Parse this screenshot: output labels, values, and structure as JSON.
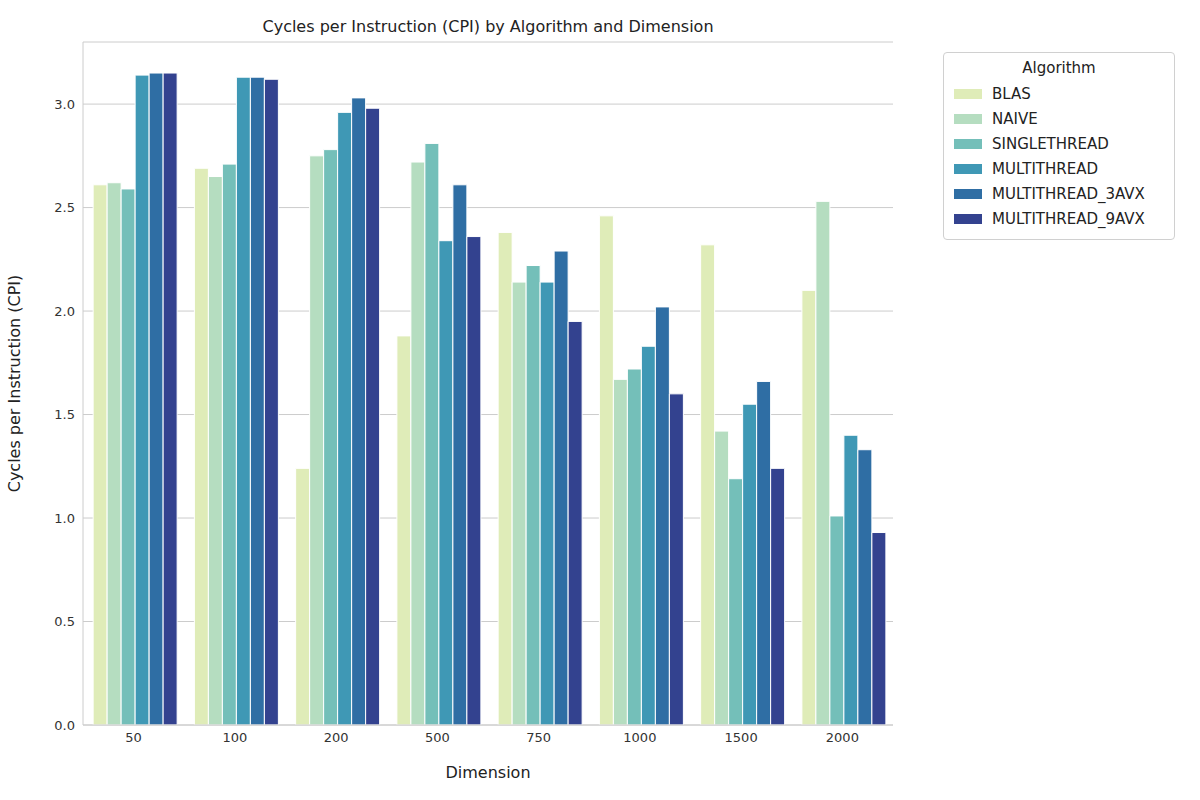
{
  "chart_data": {
    "type": "bar",
    "title": "Cycles per Instruction (CPI) by Algorithm and Dimension",
    "x_label": "Dimension",
    "y_label": "Cycles per Instruction (CPI)",
    "categories": [
      "50",
      "100",
      "200",
      "500",
      "750",
      "1000",
      "1500",
      "2000"
    ],
    "series": [
      {
        "name": "BLAS",
        "color": "#dfecb8",
        "values": [
          2.61,
          2.69,
          1.24,
          1.88,
          2.38,
          2.46,
          2.32,
          2.1
        ],
        "errors": [
          0,
          0,
          0,
          0,
          0,
          0,
          0,
          0
        ]
      },
      {
        "name": "NAIVE",
        "color": "#b5ddc0",
        "values": [
          2.62,
          2.65,
          2.75,
          2.72,
          2.14,
          1.67,
          1.42,
          2.53
        ],
        "errors": [
          0,
          0,
          0,
          0,
          0,
          0,
          0,
          0
        ]
      },
      {
        "name": "SINGLETHREAD",
        "color": "#74bfb9",
        "values": [
          2.59,
          2.71,
          2.78,
          2.81,
          2.22,
          1.72,
          1.19,
          1.01
        ],
        "errors": [
          0,
          0,
          0,
          0,
          0,
          0,
          0,
          0
        ]
      },
      {
        "name": "MULTITHREAD",
        "color": "#3f98b5",
        "values": [
          3.14,
          3.13,
          2.96,
          2.34,
          2.14,
          1.83,
          1.55,
          1.4
        ],
        "errors": [
          0,
          0,
          0,
          0,
          0,
          0,
          0,
          0
        ]
      },
      {
        "name": "MULTITHREAD_3AVX",
        "color": "#2f6ea4",
        "values": [
          3.15,
          3.13,
          3.03,
          2.61,
          2.29,
          2.02,
          1.66,
          1.33
        ],
        "errors": [
          0,
          0,
          0,
          0,
          0,
          0,
          0,
          0
        ]
      },
      {
        "name": "MULTITHREAD_9AVX",
        "color": "#33428f",
        "values": [
          3.15,
          3.12,
          2.98,
          2.36,
          1.95,
          1.6,
          1.24,
          0.93
        ],
        "errors": [
          0,
          0,
          0,
          0,
          0,
          0,
          0,
          0
        ]
      }
    ],
    "ylim": [
      0,
      3.3
    ],
    "yticks": [
      {
        "value": 0,
        "label": "0.0"
      },
      0.5,
      {
        "value": 1,
        "label": "1.0"
      },
      1.5,
      {
        "value": 2,
        "label": "2.0"
      },
      2.5,
      {
        "value": 3,
        "label": "3.0"
      }
    ],
    "grid": true,
    "legend": "right",
    "legend_title": "Algorithm"
  }
}
